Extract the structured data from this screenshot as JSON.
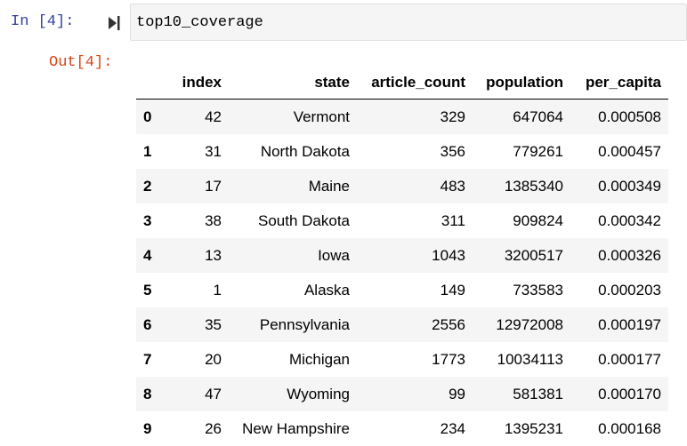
{
  "input_cell": {
    "prompt": "In [4]:",
    "code": "top10_coverage"
  },
  "output_cell": {
    "prompt": "Out[4]:",
    "table": {
      "index_header": "",
      "columns": [
        "index",
        "state",
        "article_count",
        "population",
        "per_capita"
      ],
      "rows": [
        {
          "label": "0",
          "cells": [
            "42",
            "Vermont",
            "329",
            "647064",
            "0.000508"
          ]
        },
        {
          "label": "1",
          "cells": [
            "31",
            "North Dakota",
            "356",
            "779261",
            "0.000457"
          ]
        },
        {
          "label": "2",
          "cells": [
            "17",
            "Maine",
            "483",
            "1385340",
            "0.000349"
          ]
        },
        {
          "label": "3",
          "cells": [
            "38",
            "South Dakota",
            "311",
            "909824",
            "0.000342"
          ]
        },
        {
          "label": "4",
          "cells": [
            "13",
            "Iowa",
            "1043",
            "3200517",
            "0.000326"
          ]
        },
        {
          "label": "5",
          "cells": [
            "1",
            "Alaska",
            "149",
            "733583",
            "0.000203"
          ]
        },
        {
          "label": "6",
          "cells": [
            "35",
            "Pennsylvania",
            "2556",
            "12972008",
            "0.000197"
          ]
        },
        {
          "label": "7",
          "cells": [
            "20",
            "Michigan",
            "1773",
            "10034113",
            "0.000177"
          ]
        },
        {
          "label": "8",
          "cells": [
            "47",
            "Wyoming",
            "99",
            "581381",
            "0.000170"
          ]
        },
        {
          "label": "9",
          "cells": [
            "26",
            "New Hampshire",
            "234",
            "1395231",
            "0.000168"
          ]
        }
      ]
    }
  },
  "icons": {
    "run": "run-cell-icon"
  },
  "colors": {
    "in_prompt": "#303f9f",
    "out_prompt": "#d84315",
    "cell_background": "#f5f5f5",
    "stripe": "#f5f5f5"
  }
}
